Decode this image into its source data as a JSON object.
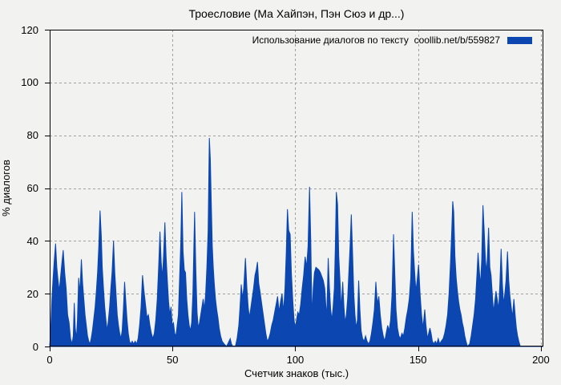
{
  "page": {
    "background_color": "#f2f2f1",
    "text_color": "#000000"
  },
  "legend": {
    "label": "Использование диалогов по тексту  coollib.net/b/559827",
    "swatch_color": "#0b46b1"
  },
  "chart_data": {
    "type": "area",
    "title": "Троесловие (Ма Хайпэн, Пэн Сюэ и др...)",
    "xlabel": "Счетчик знаков (тыс.)",
    "ylabel": "% диалогов",
    "xlim": [
      0,
      201
    ],
    "ylim": [
      0,
      120
    ],
    "x_ticks": [
      0,
      50,
      100,
      150,
      200
    ],
    "y_ticks": [
      0,
      20,
      40,
      60,
      80,
      100,
      120
    ],
    "grid": true,
    "grid_color": "#a0a0a0",
    "border_color": "#000000",
    "series_color": "#0b46b1",
    "legend_entry": "Использование диалогов по тексту  coollib.net/b/559827",
    "legend_position": "top-right",
    "max_value": 79,
    "max_value_x": 65,
    "points": [
      [
        0,
        0
      ],
      [
        0.4,
        6
      ],
      [
        0.9,
        18
      ],
      [
        1.4,
        26
      ],
      [
        1.9,
        33
      ],
      [
        2.4,
        39
      ],
      [
        2.9,
        30
      ],
      [
        3.4,
        25
      ],
      [
        3.9,
        21
      ],
      [
        4.4,
        26
      ],
      [
        4.9,
        31
      ],
      [
        5.5,
        36.5
      ],
      [
        6.1,
        28
      ],
      [
        6.7,
        22
      ],
      [
        7.3,
        12
      ],
      [
        7.9,
        9
      ],
      [
        8.5,
        3
      ],
      [
        9.1,
        1
      ],
      [
        9.6,
        4
      ],
      [
        10,
        16.5
      ],
      [
        10.4,
        7
      ],
      [
        10.9,
        3
      ],
      [
        11.3,
        10
      ],
      [
        11.8,
        26
      ],
      [
        12.3,
        20
      ],
      [
        12.9,
        33
      ],
      [
        13.4,
        24
      ],
      [
        13.9,
        18
      ],
      [
        14.4,
        12
      ],
      [
        14.9,
        8
      ],
      [
        15.4,
        4
      ],
      [
        15.9,
        2
      ],
      [
        16.4,
        1
      ],
      [
        16.9,
        3
      ],
      [
        17.4,
        6
      ],
      [
        17.9,
        10
      ],
      [
        18.5,
        15
      ],
      [
        19,
        21
      ],
      [
        19.5,
        28
      ],
      [
        20,
        38
      ],
      [
        20.5,
        51.5
      ],
      [
        21,
        42
      ],
      [
        21.4,
        30
      ],
      [
        21.9,
        22
      ],
      [
        22.4,
        15
      ],
      [
        22.9,
        10
      ],
      [
        23.4,
        6
      ],
      [
        23.9,
        10
      ],
      [
        24.4,
        15
      ],
      [
        24.9,
        22
      ],
      [
        25.4,
        28
      ],
      [
        26,
        40
      ],
      [
        26.5,
        28
      ],
      [
        27,
        20
      ],
      [
        27.5,
        12
      ],
      [
        28,
        8
      ],
      [
        28.5,
        5
      ],
      [
        29,
        3
      ],
      [
        29.5,
        6
      ],
      [
        30,
        14
      ],
      [
        30.5,
        24.5
      ],
      [
        31,
        17
      ],
      [
        31.5,
        10
      ],
      [
        32,
        5
      ],
      [
        32.5,
        2
      ],
      [
        33,
        1
      ],
      [
        33.6,
        2
      ],
      [
        34.2,
        1
      ],
      [
        34.8,
        2
      ],
      [
        35.4,
        1
      ],
      [
        36,
        3
      ],
      [
        36.6,
        8
      ],
      [
        37.2,
        15
      ],
      [
        37.8,
        27
      ],
      [
        38.4,
        21
      ],
      [
        39,
        16
      ],
      [
        39.6,
        11
      ],
      [
        40.2,
        12
      ],
      [
        40.8,
        8
      ],
      [
        41.4,
        5
      ],
      [
        42,
        3
      ],
      [
        42.6,
        5
      ],
      [
        43.2,
        10
      ],
      [
        43.8,
        18
      ],
      [
        44.4,
        31
      ],
      [
        44.9,
        43.5
      ],
      [
        45.4,
        32
      ],
      [
        45.9,
        26
      ],
      [
        46.4,
        35
      ],
      [
        46.9,
        47
      ],
      [
        47.4,
        34
      ],
      [
        47.9,
        25
      ],
      [
        48.4,
        17
      ],
      [
        48.9,
        12
      ],
      [
        49.4,
        15
      ],
      [
        49.9,
        8
      ],
      [
        50.4,
        9
      ],
      [
        50.9,
        5
      ],
      [
        51.4,
        4
      ],
      [
        51.9,
        8
      ],
      [
        52.4,
        12
      ],
      [
        52.9,
        26
      ],
      [
        53.4,
        40
      ],
      [
        53.8,
        58.5
      ],
      [
        54.3,
        36
      ],
      [
        54.8,
        29
      ],
      [
        55.3,
        28
      ],
      [
        55.8,
        18
      ],
      [
        56.3,
        12
      ],
      [
        56.8,
        8
      ],
      [
        57.3,
        6
      ],
      [
        57.8,
        9
      ],
      [
        58.3,
        20
      ],
      [
        59,
        51
      ],
      [
        59.5,
        29
      ],
      [
        60,
        13
      ],
      [
        60.5,
        7
      ],
      [
        61,
        9
      ],
      [
        61.5,
        12
      ],
      [
        62,
        15
      ],
      [
        62.5,
        18
      ],
      [
        63,
        14
      ],
      [
        63.5,
        20
      ],
      [
        64,
        30
      ],
      [
        64.5,
        43.5
      ],
      [
        65,
        79
      ],
      [
        65.4,
        71
      ],
      [
        65.8,
        54
      ],
      [
        66.2,
        38
      ],
      [
        66.6,
        30
      ],
      [
        67,
        24
      ],
      [
        67.5,
        18
      ],
      [
        68,
        14
      ],
      [
        68.5,
        11
      ],
      [
        69,
        7
      ],
      [
        69.6,
        4
      ],
      [
        70.2,
        2
      ],
      [
        71,
        1
      ],
      [
        72,
        0
      ],
      [
        73,
        2
      ],
      [
        73.5,
        3
      ],
      [
        74,
        1
      ],
      [
        74.6,
        0
      ],
      [
        75.6,
        0
      ],
      [
        76.3,
        3
      ],
      [
        77,
        8
      ],
      [
        77.5,
        15
      ],
      [
        78,
        23.5
      ],
      [
        78.5,
        18
      ],
      [
        79,
        22
      ],
      [
        79.7,
        33.5
      ],
      [
        80.3,
        22
      ],
      [
        80.8,
        15
      ],
      [
        81.3,
        11
      ],
      [
        81.8,
        14
      ],
      [
        82.4,
        18
      ],
      [
        83,
        22
      ],
      [
        83.6,
        27
      ],
      [
        84.1,
        29
      ],
      [
        84.6,
        32
      ],
      [
        85.1,
        24
      ],
      [
        85.6,
        21
      ],
      [
        86.2,
        17
      ],
      [
        86.8,
        13
      ],
      [
        87.4,
        9
      ],
      [
        88,
        5
      ],
      [
        88.6,
        2
      ],
      [
        89.2,
        3
      ],
      [
        89.8,
        5
      ],
      [
        90.4,
        8
      ],
      [
        91,
        10
      ],
      [
        91.6,
        13
      ],
      [
        92.2,
        16
      ],
      [
        92.8,
        19
      ],
      [
        93.4,
        13
      ],
      [
        94,
        17
      ],
      [
        94.6,
        20
      ],
      [
        95.2,
        13
      ],
      [
        95.8,
        22
      ],
      [
        96.3,
        35
      ],
      [
        96.8,
        52
      ],
      [
        97.3,
        44
      ],
      [
        97.9,
        42.5
      ],
      [
        98.4,
        28
      ],
      [
        99,
        17
      ],
      [
        99.5,
        10
      ],
      [
        100,
        7
      ],
      [
        100.5,
        10
      ],
      [
        101,
        13
      ],
      [
        101.6,
        12
      ],
      [
        102.2,
        16
      ],
      [
        102.8,
        22
      ],
      [
        103.4,
        27
      ],
      [
        104,
        34
      ],
      [
        104.6,
        30
      ],
      [
        105.2,
        38
      ],
      [
        105.8,
        60.5
      ],
      [
        106.3,
        40
      ],
      [
        106.8,
        11
      ],
      [
        107.3,
        22
      ],
      [
        107.8,
        28
      ],
      [
        108.4,
        30
      ],
      [
        109,
        29.5
      ],
      [
        109.6,
        29
      ],
      [
        110.2,
        28
      ],
      [
        110.8,
        26.5
      ],
      [
        111.4,
        25
      ],
      [
        112,
        22
      ],
      [
        112.4,
        16
      ],
      [
        112.8,
        11
      ],
      [
        113.4,
        33.5
      ],
      [
        113.9,
        22
      ],
      [
        114.4,
        14
      ],
      [
        114.9,
        10
      ],
      [
        115.4,
        15
      ],
      [
        115.9,
        22
      ],
      [
        116.3,
        38
      ],
      [
        116.7,
        58.5
      ],
      [
        117.2,
        54
      ],
      [
        117.7,
        34
      ],
      [
        118.2,
        25
      ],
      [
        118.7,
        14
      ],
      [
        119.3,
        24.5
      ],
      [
        119.8,
        15
      ],
      [
        120.3,
        9
      ],
      [
        120.8,
        12
      ],
      [
        121.3,
        18
      ],
      [
        121.8,
        28
      ],
      [
        122.3,
        38
      ],
      [
        122.8,
        50
      ],
      [
        123.3,
        36
      ],
      [
        123.8,
        20
      ],
      [
        124.3,
        12
      ],
      [
        124.8,
        7
      ],
      [
        125.3,
        10
      ],
      [
        125.8,
        25
      ],
      [
        126.3,
        14
      ],
      [
        126.8,
        6
      ],
      [
        127.4,
        3
      ],
      [
        128,
        2
      ],
      [
        128.6,
        4
      ],
      [
        129.2,
        2
      ],
      [
        129.8,
        1
      ],
      [
        130.4,
        2
      ],
      [
        131,
        5
      ],
      [
        131.6,
        9
      ],
      [
        132.2,
        14
      ],
      [
        132.8,
        24.5
      ],
      [
        133.4,
        16
      ],
      [
        134,
        19
      ],
      [
        134.6,
        12
      ],
      [
        135.2,
        7
      ],
      [
        135.8,
        4
      ],
      [
        136.4,
        2
      ],
      [
        137,
        5
      ],
      [
        137.6,
        8
      ],
      [
        138.2,
        6
      ],
      [
        138.8,
        10
      ],
      [
        139.4,
        20
      ],
      [
        140,
        42.5
      ],
      [
        140.5,
        28
      ],
      [
        141,
        14
      ],
      [
        141.6,
        7
      ],
      [
        142.2,
        4
      ],
      [
        142.8,
        3
      ],
      [
        143.4,
        5
      ],
      [
        144,
        4
      ],
      [
        144.6,
        7
      ],
      [
        145.2,
        11
      ],
      [
        145.8,
        14
      ],
      [
        146.4,
        18
      ],
      [
        147,
        26
      ],
      [
        147.6,
        51
      ],
      [
        148.1,
        36
      ],
      [
        148.6,
        28
      ],
      [
        149.1,
        21
      ],
      [
        149.6,
        25
      ],
      [
        150.2,
        31
      ],
      [
        150.8,
        20
      ],
      [
        151.4,
        12
      ],
      [
        152,
        7
      ],
      [
        152.7,
        14
      ],
      [
        153.2,
        8
      ],
      [
        153.8,
        3
      ],
      [
        154.3,
        5
      ],
      [
        154.8,
        7
      ],
      [
        155.3,
        5
      ],
      [
        155.8,
        2
      ],
      [
        156.4,
        1
      ],
      [
        157,
        2
      ],
      [
        157.6,
        1
      ],
      [
        158.2,
        3
      ],
      [
        158.8,
        1
      ],
      [
        159.4,
        2
      ],
      [
        160.2,
        3
      ],
      [
        160.8,
        5
      ],
      [
        161.4,
        8
      ],
      [
        162,
        12
      ],
      [
        162.6,
        20
      ],
      [
        163.2,
        32
      ],
      [
        163.7,
        44
      ],
      [
        164.1,
        55
      ],
      [
        164.5,
        51
      ],
      [
        165,
        34
      ],
      [
        165.5,
        26
      ],
      [
        166,
        21
      ],
      [
        166.5,
        17
      ],
      [
        167,
        14
      ],
      [
        167.5,
        12
      ],
      [
        168,
        9
      ],
      [
        168.5,
        7
      ],
      [
        169,
        4
      ],
      [
        169.5,
        2
      ],
      [
        170.1,
        0
      ],
      [
        171,
        1
      ],
      [
        171.6,
        4
      ],
      [
        172.2,
        8
      ],
      [
        172.8,
        12
      ],
      [
        173.4,
        18
      ],
      [
        174,
        28
      ],
      [
        174.4,
        35.5
      ],
      [
        174.9,
        29
      ],
      [
        175.4,
        23
      ],
      [
        175.9,
        33
      ],
      [
        176.4,
        53.5
      ],
      [
        176.9,
        44
      ],
      [
        177.4,
        33
      ],
      [
        177.9,
        28
      ],
      [
        178.3,
        36
      ],
      [
        178.7,
        45
      ],
      [
        179.2,
        30
      ],
      [
        179.7,
        27
      ],
      [
        180.2,
        20
      ],
      [
        180.7,
        13
      ],
      [
        181.2,
        17
      ],
      [
        181.7,
        21
      ],
      [
        182.2,
        18
      ],
      [
        182.8,
        14
      ],
      [
        183.3,
        24
      ],
      [
        183.8,
        37
      ],
      [
        184.3,
        24
      ],
      [
        184.8,
        16
      ],
      [
        185.3,
        20
      ],
      [
        185.8,
        25
      ],
      [
        186.4,
        36
      ],
      [
        186.9,
        25
      ],
      [
        187.4,
        19
      ],
      [
        187.9,
        15
      ],
      [
        188.4,
        11
      ],
      [
        189,
        18
      ],
      [
        189.5,
        12
      ],
      [
        190,
        7
      ],
      [
        190.5,
        4
      ],
      [
        191,
        2
      ],
      [
        191.6,
        0
      ],
      [
        195,
        0
      ],
      [
        201,
        0
      ]
    ]
  }
}
